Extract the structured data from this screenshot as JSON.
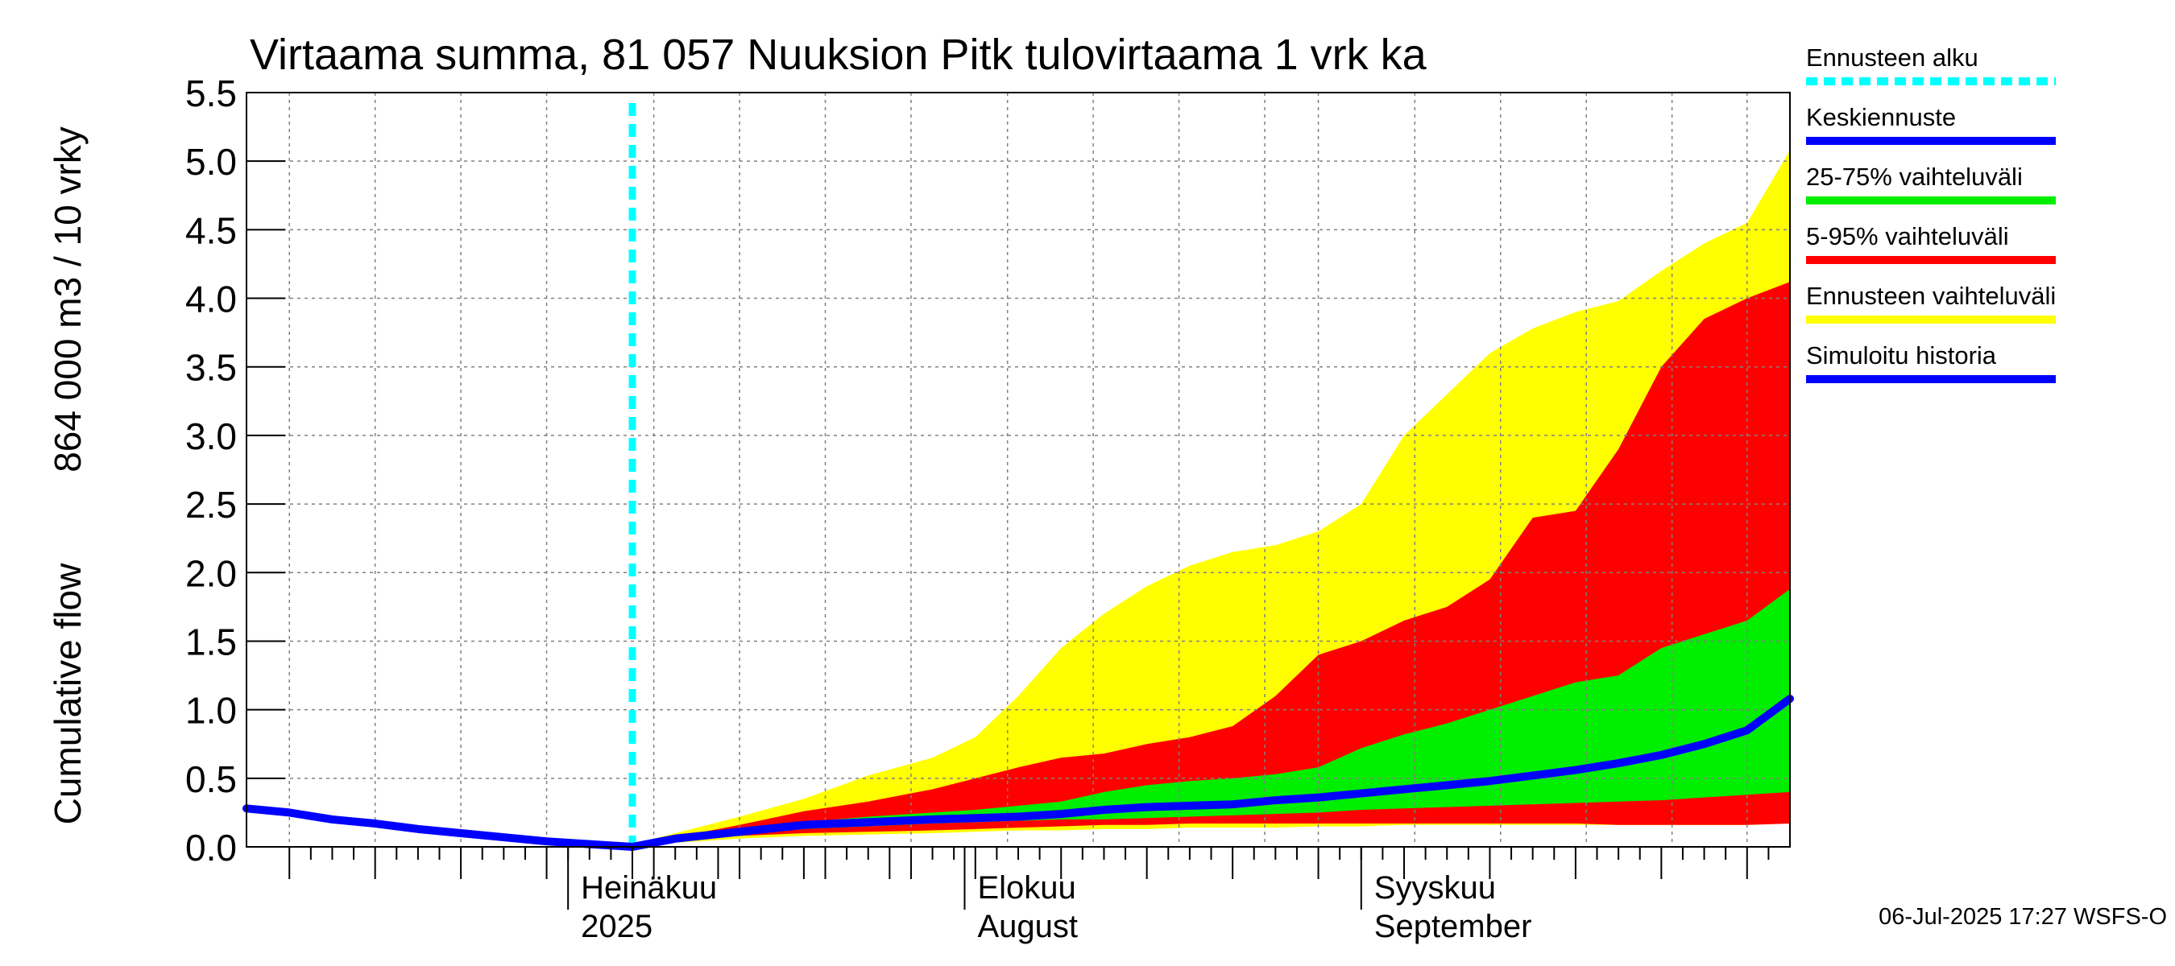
{
  "chart_data": {
    "type": "area",
    "title": "Virtaama summa, 81 057 Nuuksion Pitk tulovirtaama 1 vrk ka",
    "ylabel_line1": "864 000 m3 / 10 vrky",
    "ylabel_line2": "Cumulative flow",
    "ylim": [
      0,
      5.5
    ],
    "yticks": [
      0.0,
      0.5,
      1.0,
      1.5,
      2.0,
      2.5,
      3.0,
      3.5,
      4.0,
      4.5,
      5.0,
      5.5
    ],
    "ytick_labels": [
      "0.0",
      "0.5",
      "1.0",
      "1.5",
      "2.0",
      "2.5",
      "3.0",
      "3.5",
      "4.0",
      "4.5",
      "5.0",
      "5.5"
    ],
    "xlim": [
      0,
      144
    ],
    "month_labels": [
      {
        "x": 30,
        "line1": "Heinäkuu",
        "line2": "2025"
      },
      {
        "x": 67,
        "line1": "Elokuu",
        "line2": "August"
      },
      {
        "x": 104,
        "line1": "Syyskuu",
        "line2": "September"
      }
    ],
    "forecast_start_x": 36,
    "grid": true,
    "series": [
      {
        "name": "Ennusteen vaihteluväli",
        "color": "#ffff00",
        "x": [
          36,
          40,
          46,
          52,
          58,
          64,
          68,
          72,
          76,
          80,
          84,
          88,
          92,
          96,
          100,
          104,
          108,
          112,
          116,
          120,
          124,
          128,
          132,
          136,
          140,
          144
        ],
        "upper": [
          0.02,
          0.1,
          0.22,
          0.35,
          0.52,
          0.65,
          0.8,
          1.1,
          1.45,
          1.7,
          1.9,
          2.05,
          2.15,
          2.2,
          2.3,
          2.5,
          3.0,
          3.3,
          3.6,
          3.78,
          3.9,
          3.98,
          4.2,
          4.4,
          4.55,
          5.08
        ],
        "lower": [
          0.0,
          0.03,
          0.06,
          0.08,
          0.09,
          0.1,
          0.11,
          0.12,
          0.12,
          0.13,
          0.13,
          0.14,
          0.14,
          0.14,
          0.15,
          0.15,
          0.16,
          0.16,
          0.16,
          0.16,
          0.16,
          0.16,
          0.16,
          0.16,
          0.16,
          0.17
        ]
      },
      {
        "name": "5-95% vaihteluväli",
        "color": "#ff0000",
        "x": [
          36,
          40,
          46,
          52,
          58,
          64,
          68,
          72,
          76,
          80,
          84,
          88,
          92,
          96,
          100,
          104,
          108,
          112,
          116,
          120,
          124,
          128,
          132,
          136,
          140,
          144
        ],
        "upper": [
          0.02,
          0.07,
          0.16,
          0.26,
          0.33,
          0.42,
          0.5,
          0.58,
          0.65,
          0.68,
          0.75,
          0.8,
          0.88,
          1.1,
          1.4,
          1.5,
          1.65,
          1.75,
          1.95,
          2.4,
          2.45,
          2.9,
          3.5,
          3.85,
          4.0,
          4.12
        ],
        "lower": [
          0.0,
          0.04,
          0.08,
          0.1,
          0.11,
          0.12,
          0.13,
          0.14,
          0.15,
          0.16,
          0.16,
          0.17,
          0.17,
          0.17,
          0.17,
          0.17,
          0.17,
          0.17,
          0.17,
          0.17,
          0.17,
          0.16,
          0.16,
          0.16,
          0.16,
          0.17
        ]
      },
      {
        "name": "25-75% vaihteluväli",
        "color": "#00ee00",
        "x": [
          36,
          40,
          46,
          52,
          58,
          64,
          68,
          72,
          76,
          80,
          84,
          88,
          92,
          96,
          100,
          104,
          108,
          112,
          116,
          120,
          124,
          128,
          132,
          136,
          140,
          144
        ],
        "upper": [
          0.02,
          0.06,
          0.12,
          0.18,
          0.22,
          0.25,
          0.27,
          0.3,
          0.33,
          0.4,
          0.45,
          0.48,
          0.5,
          0.53,
          0.58,
          0.72,
          0.82,
          0.9,
          1.0,
          1.1,
          1.2,
          1.25,
          1.45,
          1.55,
          1.65,
          1.88
        ],
        "lower": [
          0.0,
          0.05,
          0.09,
          0.13,
          0.15,
          0.17,
          0.18,
          0.19,
          0.2,
          0.2,
          0.21,
          0.22,
          0.23,
          0.24,
          0.25,
          0.27,
          0.28,
          0.29,
          0.3,
          0.31,
          0.32,
          0.33,
          0.34,
          0.36,
          0.38,
          0.4
        ]
      },
      {
        "name": "Keskiennuste",
        "color": "#0000ff",
        "x": [
          36,
          40,
          46,
          52,
          58,
          64,
          68,
          72,
          76,
          80,
          84,
          88,
          92,
          96,
          100,
          104,
          108,
          112,
          116,
          120,
          124,
          128,
          132,
          136,
          140,
          144
        ],
        "y": [
          0.0,
          0.06,
          0.11,
          0.16,
          0.18,
          0.2,
          0.21,
          0.22,
          0.24,
          0.27,
          0.29,
          0.3,
          0.31,
          0.34,
          0.36,
          0.39,
          0.42,
          0.45,
          0.48,
          0.52,
          0.56,
          0.61,
          0.67,
          0.75,
          0.85,
          1.08
        ]
      },
      {
        "name": "Simuloitu historia",
        "color": "#0000ff",
        "x": [
          0,
          4,
          8,
          12,
          16,
          20,
          24,
          28,
          32,
          36
        ],
        "y": [
          0.28,
          0.25,
          0.2,
          0.17,
          0.13,
          0.1,
          0.07,
          0.04,
          0.02,
          0.0
        ]
      }
    ],
    "legend": [
      {
        "label": "Ennusteen alku",
        "color": "#00ffff",
        "style": "dashed"
      },
      {
        "label": "Keskiennuste",
        "color": "#0000ff",
        "style": "solid"
      },
      {
        "label": "25-75% vaihteluväli",
        "color": "#00ee00",
        "style": "solid"
      },
      {
        "label": "5-95% vaihteluväli",
        "color": "#ff0000",
        "style": "solid"
      },
      {
        "label": "Ennusteen vaihteluväli",
        "color": "#ffff00",
        "style": "solid"
      },
      {
        "label": "Simuloitu historia",
        "color": "#0000ff",
        "style": "solid"
      }
    ],
    "legend_position": "right",
    "footer": "06-Jul-2025 17:27 WSFS-O"
  }
}
